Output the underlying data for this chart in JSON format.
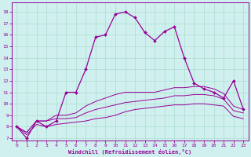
{
  "xlabel": "Windchill (Refroidissement éolien,°C)",
  "background_color": "#cff0ee",
  "line_color": "#990099",
  "grid_color": "#aaddcc",
  "xlim": [
    -0.5,
    23.5
  ],
  "ylim": [
    6.8,
    18.8
  ],
  "yticks": [
    7,
    8,
    9,
    10,
    11,
    12,
    13,
    14,
    15,
    16,
    17,
    18
  ],
  "xticks": [
    0,
    1,
    2,
    3,
    4,
    5,
    6,
    7,
    8,
    9,
    10,
    11,
    12,
    13,
    14,
    15,
    16,
    17,
    18,
    19,
    20,
    21,
    22,
    23
  ],
  "series": [
    [
      8.0,
      7.0,
      8.5,
      8.0,
      8.5,
      11.0,
      11.0,
      13.0,
      15.8,
      16.0,
      17.8,
      18.0,
      17.5,
      16.2,
      15.5,
      16.3,
      16.7,
      14.0,
      11.8,
      11.3,
      11.0,
      10.5,
      12.0,
      9.5
    ],
    [
      8.0,
      7.5,
      8.5,
      8.5,
      9.0,
      9.0,
      9.2,
      9.8,
      10.2,
      10.5,
      10.8,
      11.0,
      11.0,
      11.0,
      11.0,
      11.2,
      11.4,
      11.4,
      11.5,
      11.5,
      11.3,
      10.9,
      9.8,
      9.5
    ],
    [
      8.0,
      7.5,
      8.5,
      8.5,
      8.7,
      8.7,
      8.8,
      9.2,
      9.5,
      9.7,
      9.9,
      10.1,
      10.2,
      10.3,
      10.4,
      10.5,
      10.7,
      10.7,
      10.8,
      10.8,
      10.7,
      10.4,
      9.4,
      9.2
    ],
    [
      8.0,
      7.3,
      8.2,
      8.0,
      8.2,
      8.3,
      8.4,
      8.5,
      8.7,
      8.8,
      9.0,
      9.3,
      9.5,
      9.6,
      9.7,
      9.8,
      9.9,
      9.9,
      10.0,
      10.0,
      9.9,
      9.8,
      8.9,
      8.7
    ]
  ]
}
